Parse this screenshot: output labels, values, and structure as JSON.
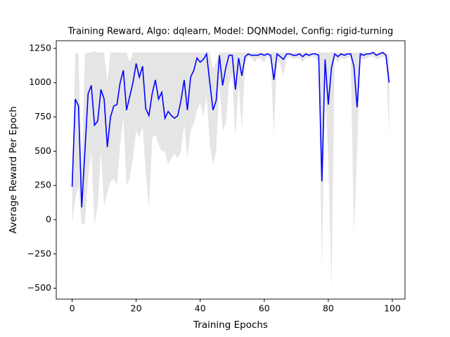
{
  "chart_data": {
    "type": "line",
    "title": "Training Reward, Algo: dqlearn, Model: DQNModel, Config: rigid-turning",
    "xlabel": "Training Epochs",
    "ylabel": "Average Reward Per Epoch",
    "x": [
      0,
      1,
      2,
      3,
      4,
      5,
      6,
      7,
      8,
      9,
      10,
      11,
      12,
      13,
      14,
      15,
      16,
      17,
      18,
      19,
      20,
      21,
      22,
      23,
      24,
      25,
      26,
      27,
      28,
      29,
      30,
      31,
      32,
      33,
      34,
      35,
      36,
      37,
      38,
      39,
      40,
      41,
      42,
      43,
      44,
      45,
      46,
      47,
      48,
      49,
      50,
      51,
      52,
      53,
      54,
      55,
      56,
      57,
      58,
      59,
      60,
      61,
      62,
      63,
      64,
      65,
      66,
      67,
      68,
      69,
      70,
      71,
      72,
      73,
      74,
      75,
      76,
      77,
      78,
      79,
      80,
      81,
      82,
      83,
      84,
      85,
      86,
      87,
      88,
      89,
      90,
      91,
      92,
      93,
      94,
      95,
      96,
      97,
      98,
      99
    ],
    "values": [
      240,
      880,
      830,
      90,
      500,
      920,
      980,
      690,
      720,
      950,
      880,
      530,
      750,
      830,
      840,
      1000,
      1090,
      800,
      900,
      1000,
      1140,
      1040,
      1120,
      810,
      760,
      920,
      1020,
      880,
      930,
      740,
      790,
      760,
      740,
      760,
      870,
      1020,
      800,
      1040,
      1090,
      1180,
      1150,
      1170,
      1210,
      1000,
      800,
      870,
      1200,
      980,
      1110,
      1200,
      1200,
      950,
      1180,
      1050,
      1190,
      1210,
      1200,
      1200,
      1200,
      1210,
      1200,
      1210,
      1200,
      1020,
      1210,
      1190,
      1170,
      1210,
      1210,
      1200,
      1200,
      1210,
      1190,
      1210,
      1200,
      1210,
      1210,
      1200,
      280,
      1170,
      840,
      1110,
      1210,
      1190,
      1210,
      1200,
      1210,
      1210,
      1120,
      820,
      1210,
      1200,
      1210,
      1210,
      1220,
      1200,
      1210,
      1220,
      1200,
      1000
    ],
    "upper": [
      250,
      1220,
      1210,
      330,
      1210,
      1220,
      1220,
      1230,
      1220,
      1220,
      1220,
      1010,
      1220,
      1220,
      1220,
      1220,
      1220,
      1220,
      1150,
      1220,
      1220,
      1220,
      1220,
      1220,
      1220,
      1220,
      1220,
      1220,
      1220,
      1220,
      1220,
      1220,
      1220,
      1220,
      1220,
      1220,
      1220,
      1220,
      1220,
      1220,
      1220,
      1220,
      1220,
      1220,
      1100,
      1150,
      1220,
      1220,
      1220,
      1220,
      1220,
      1220,
      1220,
      1220,
      1220,
      1220,
      1220,
      1220,
      1220,
      1220,
      1220,
      1220,
      1220,
      1220,
      1220,
      1220,
      1220,
      1220,
      1220,
      1220,
      1220,
      1220,
      1220,
      1220,
      1220,
      1220,
      1220,
      1220,
      1220,
      1220,
      1220,
      1220,
      1220,
      1220,
      1220,
      1220,
      1220,
      1220,
      1220,
      1220,
      1220,
      1220,
      1220,
      1220,
      1230,
      1220,
      1220,
      1230,
      1220,
      1200
    ],
    "lower": [
      -30,
      150,
      250,
      -40,
      -20,
      300,
      500,
      -40,
      100,
      500,
      100,
      200,
      280,
      300,
      250,
      550,
      750,
      250,
      300,
      450,
      650,
      600,
      680,
      350,
      80,
      600,
      620,
      550,
      500,
      500,
      400,
      450,
      480,
      450,
      500,
      700,
      450,
      650,
      700,
      800,
      850,
      750,
      900,
      550,
      400,
      500,
      1000,
      650,
      700,
      1000,
      1050,
      600,
      1000,
      650,
      1130,
      1190,
      1180,
      1150,
      1180,
      1170,
      1150,
      1190,
      1170,
      620,
      1180,
      1130,
      1050,
      1180,
      1190,
      1170,
      1180,
      1180,
      1150,
      1180,
      1180,
      1190,
      1180,
      1150,
      -360,
      1000,
      450,
      -500,
      1180,
      1150,
      1180,
      1170,
      1180,
      1190,
      -100,
      500,
      1180,
      1170,
      1180,
      1190,
      1190,
      1170,
      1180,
      1190,
      1180,
      600
    ],
    "color": "#0000ff",
    "band_color": "#e5e5e5",
    "xlim": [
      -4.95,
      103.95
    ],
    "ylim": [
      -579,
      1306
    ],
    "xticks": [
      0,
      20,
      40,
      60,
      80,
      100
    ],
    "yticks": [
      {
        "value": -500,
        "label": "−500"
      },
      {
        "value": -250,
        "label": "−250"
      },
      0,
      250,
      500,
      750,
      1000,
      1250
    ],
    "grid": false
  }
}
